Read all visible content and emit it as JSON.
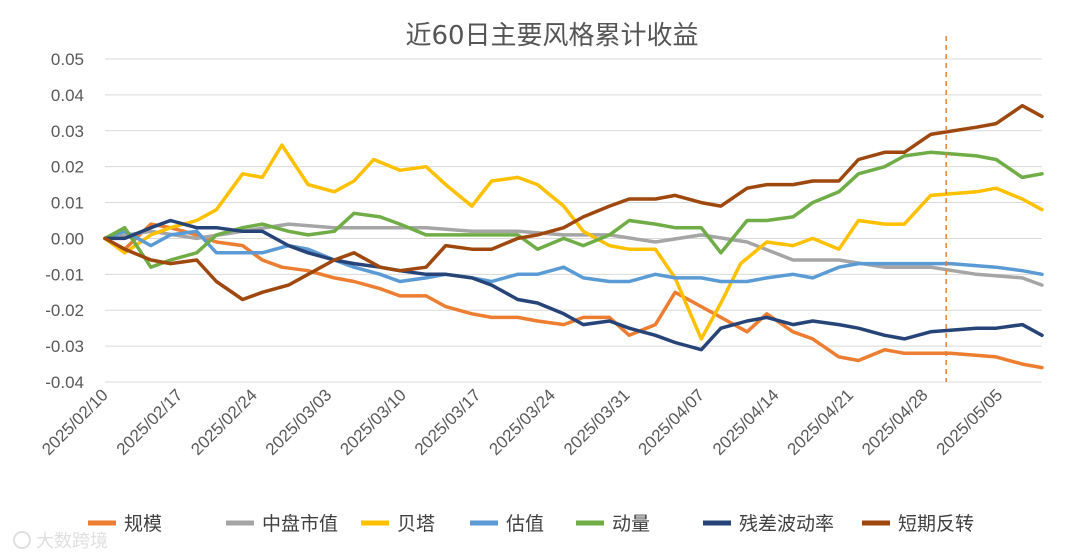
{
  "chart_data": {
    "type": "line",
    "title": "近60日主要风格累计收益",
    "ylim": [
      -0.04,
      0.05
    ],
    "yticks": [
      "0.05",
      "0.04",
      "0.03",
      "0.02",
      "0.01",
      "0.00",
      "-0.01",
      "-0.02",
      "-0.03",
      "-0.04"
    ],
    "xticks": [
      "2025/02/10",
      "2025/02/17",
      "2025/02/24",
      "2025/03/03",
      "2025/03/10",
      "2025/03/17",
      "2025/03/24",
      "2025/03/31",
      "2025/04/07",
      "2025/04/14",
      "2025/04/21",
      "2025/04/28",
      "2025/05/05"
    ],
    "x_start": "2025/02/10",
    "x_end": "2025/05/09",
    "vline_date": "2025/04/30",
    "grid": true,
    "legend_position": "bottom",
    "series": [
      {
        "name": "规模",
        "color": "#ED7D31",
        "values": [
          [
            0,
            0
          ],
          [
            3,
            -0.003
          ],
          [
            7,
            0.004
          ],
          [
            10,
            0.003
          ],
          [
            14,
            0.001
          ],
          [
            17,
            -0.001
          ],
          [
            21,
            -0.002
          ],
          [
            24,
            -0.006
          ],
          [
            27,
            -0.008
          ],
          [
            31,
            -0.009
          ],
          [
            35,
            -0.011
          ],
          [
            38,
            -0.012
          ],
          [
            42,
            -0.014
          ],
          [
            45,
            -0.016
          ],
          [
            49,
            -0.016
          ],
          [
            52,
            -0.019
          ],
          [
            56,
            -0.021
          ],
          [
            59,
            -0.022
          ],
          [
            63,
            -0.022
          ],
          [
            66,
            -0.023
          ],
          [
            70,
            -0.024
          ],
          [
            73,
            -0.022
          ],
          [
            77,
            -0.022
          ],
          [
            80,
            -0.027
          ],
          [
            84,
            -0.024
          ],
          [
            87,
            -0.015
          ],
          [
            90,
            -0.018
          ],
          [
            94,
            -0.022
          ],
          [
            98,
            -0.026
          ],
          [
            101,
            -0.021
          ],
          [
            105,
            -0.026
          ],
          [
            108,
            -0.028
          ],
          [
            112,
            -0.033
          ],
          [
            115,
            -0.034
          ],
          [
            119,
            -0.031
          ],
          [
            122,
            -0.032
          ],
          [
            129,
            -0.032
          ],
          [
            136,
            -0.033
          ],
          [
            140,
            -0.035
          ],
          [
            143,
            -0.036
          ]
        ]
      },
      {
        "name": "中盘市值",
        "color": "#A5A5A5",
        "values": [
          [
            0,
            0
          ],
          [
            7,
            0.002
          ],
          [
            14,
            0.0
          ],
          [
            21,
            0.002
          ],
          [
            28,
            0.004
          ],
          [
            35,
            0.003
          ],
          [
            42,
            0.003
          ],
          [
            49,
            0.003
          ],
          [
            56,
            0.002
          ],
          [
            63,
            0.002
          ],
          [
            70,
            0.001
          ],
          [
            77,
            0.001
          ],
          [
            84,
            -0.001
          ],
          [
            91,
            0.001
          ],
          [
            98,
            -0.001
          ],
          [
            105,
            -0.006
          ],
          [
            112,
            -0.006
          ],
          [
            119,
            -0.008
          ],
          [
            126,
            -0.008
          ],
          [
            133,
            -0.01
          ],
          [
            140,
            -0.011
          ],
          [
            143,
            -0.013
          ]
        ]
      },
      {
        "name": "贝塔",
        "color": "#FFC000",
        "values": [
          [
            0,
            0
          ],
          [
            3,
            -0.004
          ],
          [
            7,
            0.001
          ],
          [
            10,
            0.003
          ],
          [
            14,
            0.005
          ],
          [
            17,
            0.008
          ],
          [
            21,
            0.018
          ],
          [
            24,
            0.017
          ],
          [
            27,
            0.026
          ],
          [
            31,
            0.015
          ],
          [
            35,
            0.013
          ],
          [
            38,
            0.016
          ],
          [
            41,
            0.022
          ],
          [
            45,
            0.019
          ],
          [
            49,
            0.02
          ],
          [
            52,
            0.015
          ],
          [
            56,
            0.009
          ],
          [
            59,
            0.016
          ],
          [
            63,
            0.017
          ],
          [
            66,
            0.015
          ],
          [
            70,
            0.009
          ],
          [
            73,
            0.002
          ],
          [
            77,
            -0.002
          ],
          [
            80,
            -0.003
          ],
          [
            84,
            -0.003
          ],
          [
            87,
            -0.011
          ],
          [
            91,
            -0.028
          ],
          [
            94,
            -0.018
          ],
          [
            97,
            -0.007
          ],
          [
            101,
            -0.001
          ],
          [
            105,
            -0.002
          ],
          [
            108,
            0.0
          ],
          [
            112,
            -0.003
          ],
          [
            115,
            0.005
          ],
          [
            119,
            0.004
          ],
          [
            122,
            0.004
          ],
          [
            126,
            0.012
          ],
          [
            133,
            0.013
          ],
          [
            136,
            0.014
          ],
          [
            140,
            0.011
          ],
          [
            143,
            0.008
          ]
        ]
      },
      {
        "name": "估值",
        "color": "#5B9BD5",
        "values": [
          [
            0,
            0
          ],
          [
            3,
            0.002
          ],
          [
            7,
            -0.002
          ],
          [
            10,
            0.001
          ],
          [
            14,
            0.002
          ],
          [
            17,
            -0.004
          ],
          [
            21,
            -0.004
          ],
          [
            24,
            -0.004
          ],
          [
            28,
            -0.002
          ],
          [
            31,
            -0.003
          ],
          [
            35,
            -0.006
          ],
          [
            38,
            -0.008
          ],
          [
            42,
            -0.01
          ],
          [
            45,
            -0.012
          ],
          [
            49,
            -0.011
          ],
          [
            52,
            -0.01
          ],
          [
            56,
            -0.011
          ],
          [
            59,
            -0.012
          ],
          [
            63,
            -0.01
          ],
          [
            66,
            -0.01
          ],
          [
            70,
            -0.008
          ],
          [
            73,
            -0.011
          ],
          [
            77,
            -0.012
          ],
          [
            80,
            -0.012
          ],
          [
            84,
            -0.01
          ],
          [
            87,
            -0.011
          ],
          [
            91,
            -0.011
          ],
          [
            94,
            -0.012
          ],
          [
            98,
            -0.012
          ],
          [
            101,
            -0.011
          ],
          [
            105,
            -0.01
          ],
          [
            108,
            -0.011
          ],
          [
            112,
            -0.008
          ],
          [
            115,
            -0.007
          ],
          [
            119,
            -0.007
          ],
          [
            122,
            -0.007
          ],
          [
            129,
            -0.007
          ],
          [
            136,
            -0.008
          ],
          [
            140,
            -0.009
          ],
          [
            143,
            -0.01
          ]
        ]
      },
      {
        "name": "动量",
        "color": "#70AD47",
        "values": [
          [
            0,
            0
          ],
          [
            3,
            0.003
          ],
          [
            7,
            -0.008
          ],
          [
            10,
            -0.006
          ],
          [
            14,
            -0.004
          ],
          [
            17,
            0.001
          ],
          [
            21,
            0.003
          ],
          [
            24,
            0.004
          ],
          [
            28,
            0.002
          ],
          [
            31,
            0.001
          ],
          [
            35,
            0.002
          ],
          [
            38,
            0.007
          ],
          [
            42,
            0.006
          ],
          [
            45,
            0.004
          ],
          [
            49,
            0.001
          ],
          [
            52,
            0.001
          ],
          [
            56,
            0.001
          ],
          [
            59,
            0.001
          ],
          [
            63,
            0.001
          ],
          [
            66,
            -0.003
          ],
          [
            70,
            0.0
          ],
          [
            73,
            -0.002
          ],
          [
            77,
            0.001
          ],
          [
            80,
            0.005
          ],
          [
            84,
            0.004
          ],
          [
            87,
            0.003
          ],
          [
            91,
            0.003
          ],
          [
            94,
            -0.004
          ],
          [
            98,
            0.005
          ],
          [
            101,
            0.005
          ],
          [
            105,
            0.006
          ],
          [
            108,
            0.01
          ],
          [
            112,
            0.013
          ],
          [
            115,
            0.018
          ],
          [
            119,
            0.02
          ],
          [
            122,
            0.023
          ],
          [
            126,
            0.024
          ],
          [
            133,
            0.023
          ],
          [
            136,
            0.022
          ],
          [
            140,
            0.017
          ],
          [
            143,
            0.018
          ]
        ]
      },
      {
        "name": "残差波动率",
        "color": "#264478",
        "values": [
          [
            0,
            0
          ],
          [
            3,
            0.0
          ],
          [
            7,
            0.003
          ],
          [
            10,
            0.005
          ],
          [
            14,
            0.003
          ],
          [
            17,
            0.003
          ],
          [
            21,
            0.002
          ],
          [
            24,
            0.002
          ],
          [
            28,
            -0.002
          ],
          [
            31,
            -0.004
          ],
          [
            35,
            -0.006
          ],
          [
            38,
            -0.007
          ],
          [
            42,
            -0.008
          ],
          [
            45,
            -0.009
          ],
          [
            49,
            -0.01
          ],
          [
            52,
            -0.01
          ],
          [
            56,
            -0.011
          ],
          [
            59,
            -0.013
          ],
          [
            63,
            -0.017
          ],
          [
            66,
            -0.018
          ],
          [
            70,
            -0.021
          ],
          [
            73,
            -0.024
          ],
          [
            77,
            -0.023
          ],
          [
            80,
            -0.025
          ],
          [
            84,
            -0.027
          ],
          [
            87,
            -0.029
          ],
          [
            91,
            -0.031
          ],
          [
            94,
            -0.025
          ],
          [
            98,
            -0.023
          ],
          [
            101,
            -0.022
          ],
          [
            105,
            -0.024
          ],
          [
            108,
            -0.023
          ],
          [
            112,
            -0.024
          ],
          [
            115,
            -0.025
          ],
          [
            119,
            -0.027
          ],
          [
            122,
            -0.028
          ],
          [
            126,
            -0.026
          ],
          [
            133,
            -0.025
          ],
          [
            136,
            -0.025
          ],
          [
            140,
            -0.024
          ],
          [
            143,
            -0.027
          ]
        ]
      },
      {
        "name": "短期反转",
        "color": "#9E480E",
        "values": [
          [
            0,
            0
          ],
          [
            3,
            -0.003
          ],
          [
            7,
            -0.006
          ],
          [
            10,
            -0.007
          ],
          [
            14,
            -0.006
          ],
          [
            17,
            -0.012
          ],
          [
            21,
            -0.017
          ],
          [
            24,
            -0.015
          ],
          [
            28,
            -0.013
          ],
          [
            31,
            -0.01
          ],
          [
            35,
            -0.006
          ],
          [
            38,
            -0.004
          ],
          [
            42,
            -0.008
          ],
          [
            45,
            -0.009
          ],
          [
            49,
            -0.008
          ],
          [
            52,
            -0.002
          ],
          [
            56,
            -0.003
          ],
          [
            59,
            -0.003
          ],
          [
            63,
            0.0
          ],
          [
            66,
            0.001
          ],
          [
            70,
            0.003
          ],
          [
            73,
            0.006
          ],
          [
            77,
            0.009
          ],
          [
            80,
            0.011
          ],
          [
            84,
            0.011
          ],
          [
            87,
            0.012
          ],
          [
            91,
            0.01
          ],
          [
            94,
            0.009
          ],
          [
            98,
            0.014
          ],
          [
            101,
            0.015
          ],
          [
            105,
            0.015
          ],
          [
            108,
            0.016
          ],
          [
            112,
            0.016
          ],
          [
            115,
            0.022
          ],
          [
            119,
            0.024
          ],
          [
            122,
            0.024
          ],
          [
            126,
            0.029
          ],
          [
            133,
            0.031
          ],
          [
            136,
            0.032
          ],
          [
            140,
            0.037
          ],
          [
            143,
            0.034
          ]
        ]
      }
    ]
  },
  "watermark": "大数跨境"
}
